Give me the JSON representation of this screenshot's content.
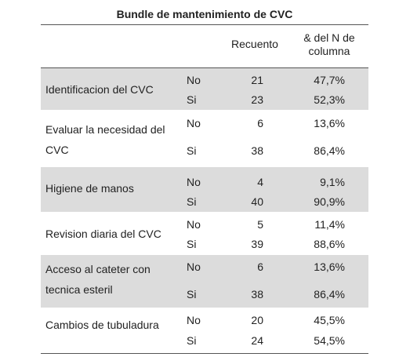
{
  "table": {
    "title": "Bundle de mantenimiento de CVC",
    "columns": [
      "Recuento",
      "& del N de columna"
    ],
    "groups": [
      {
        "label": "Identificacion del CVC",
        "rows": [
          [
            "No",
            21,
            "47,7%"
          ],
          [
            "Si",
            23,
            "52,3%"
          ]
        ]
      },
      {
        "label": "Evaluar la necesidad del CVC",
        "rows": [
          [
            "No",
            6,
            "13,6%"
          ],
          [
            "Si",
            38,
            "86,4%"
          ]
        ]
      },
      {
        "label": "Higiene de manos",
        "rows": [
          [
            "No",
            4,
            "9,1%"
          ],
          [
            "Si",
            40,
            "90,9%"
          ]
        ]
      },
      {
        "label": "Revision diaria del CVC",
        "rows": [
          [
            "No",
            5,
            "11,4%"
          ],
          [
            "Si",
            39,
            "88,6%"
          ]
        ]
      },
      {
        "label": "Acceso al cateter con tecnica esteril",
        "rows": [
          [
            "No",
            6,
            "13,6%"
          ],
          [
            "Si",
            38,
            "86,4%"
          ]
        ]
      },
      {
        "label": "Cambios de tubuladura",
        "rows": [
          [
            "No",
            20,
            "45,5%"
          ],
          [
            "Si",
            24,
            "54,5%"
          ]
        ]
      }
    ]
  }
}
